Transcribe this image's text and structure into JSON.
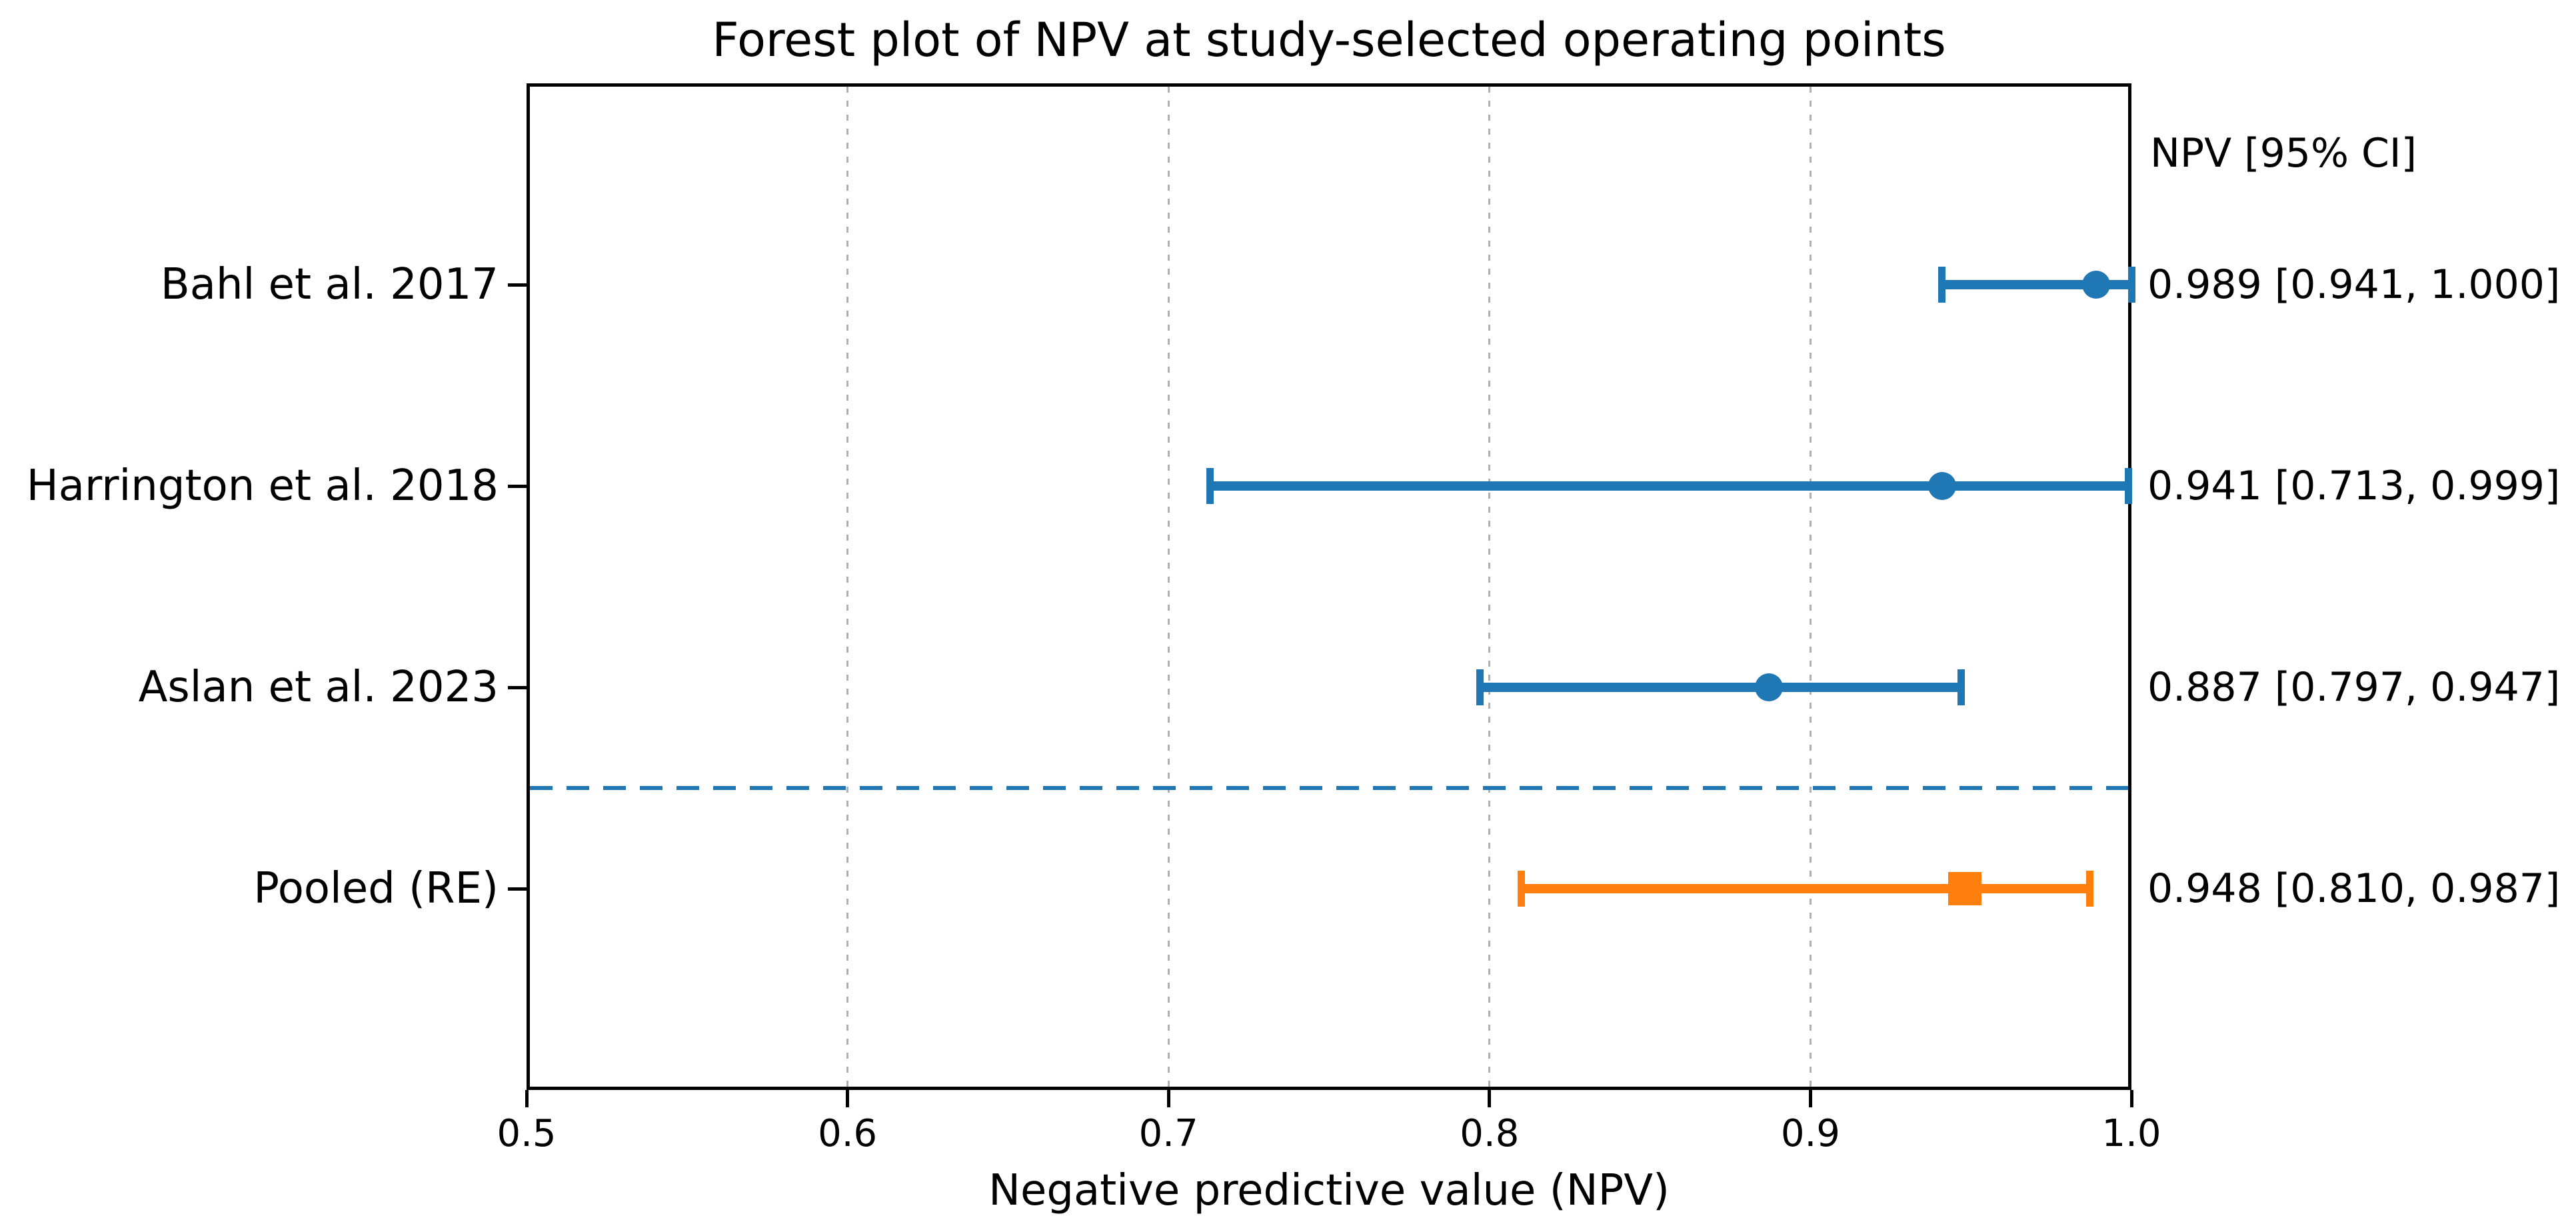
{
  "figure": {
    "background": "#ffffff"
  },
  "chart_data": {
    "type": "forest",
    "title": "Forest plot of NPV at study-selected operating points",
    "xlabel": "Negative predictive value (NPV)",
    "right_column_header": "NPV [95% CI]",
    "xlim": [
      0.5,
      1.0
    ],
    "ylim": [
      0,
      5
    ],
    "x_ticks": [
      0.5,
      0.6,
      0.7,
      0.8,
      0.9,
      1.0
    ],
    "x_tick_labels": [
      "0.5",
      "0.6",
      "0.7",
      "0.8",
      "0.9",
      "1.0"
    ],
    "x_gridlines": [
      0.6,
      0.7,
      0.8,
      0.9
    ],
    "grid_style": "dotted-vertical",
    "legend_position": "none",
    "rows": [
      {
        "label": "Bahl et al. 2017",
        "y": 4,
        "npv": 0.989,
        "ci_low": 0.941,
        "ci_high": 1.0,
        "display": "0.989 [0.941, 1.000]",
        "marker": "circle",
        "color": "#1f77b4"
      },
      {
        "label": "Harrington et al. 2018",
        "y": 3,
        "npv": 0.941,
        "ci_low": 0.713,
        "ci_high": 0.999,
        "display": "0.941 [0.713, 0.999]",
        "marker": "circle",
        "color": "#1f77b4"
      },
      {
        "label": "Aslan et al. 2023",
        "y": 2,
        "npv": 0.887,
        "ci_low": 0.797,
        "ci_high": 0.947,
        "display": "0.887 [0.797, 0.947]",
        "marker": "circle",
        "color": "#1f77b4"
      },
      {
        "label": "Pooled (RE)",
        "y": 1,
        "npv": 0.948,
        "ci_low": 0.81,
        "ci_high": 0.987,
        "display": "0.948 [0.810, 0.987]",
        "marker": "square",
        "color": "#ff7f0e"
      }
    ],
    "separator": {
      "y": 1.5,
      "style": "dashed",
      "color": "#1f77b4"
    },
    "colors": {
      "study_marker": "#1f77b4",
      "pooled_marker": "#ff7f0e",
      "gridline": "#b0b0b0",
      "spine": "#000000",
      "text": "#000000"
    }
  }
}
